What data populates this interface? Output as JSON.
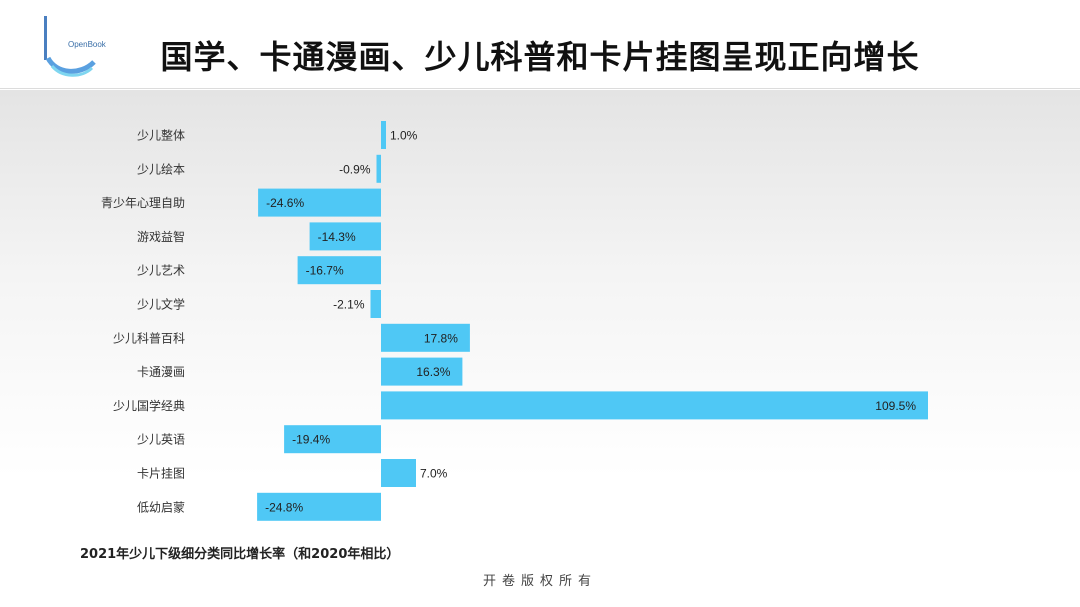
{
  "header": {
    "title": "国学、卡通漫画、少儿科普和卡片挂图呈现正向增长",
    "logo_text": "OpenBook"
  },
  "caption": "2021年少儿下级细分类同比增长率（和2020年相比）",
  "footer": "开卷版权所有",
  "colors": {
    "bar": "#4fc8f5",
    "bar_edge": "#3aaee0"
  },
  "chart_data": {
    "type": "bar",
    "orientation": "horizontal",
    "categories": [
      "少儿整体",
      "少儿绘本",
      "青少年心理自助",
      "游戏益智",
      "少儿艺术",
      "少儿文学",
      "少儿科普百科",
      "卡通漫画",
      "少儿国学经典",
      "少儿英语",
      "卡片挂图",
      "低幼启蒙"
    ],
    "values": [
      1.0,
      -0.9,
      -24.6,
      -14.3,
      -16.7,
      -2.1,
      17.8,
      16.3,
      109.5,
      -19.4,
      7.0,
      -24.8
    ],
    "labels": [
      "1.0%",
      "-0.9%",
      "-24.6%",
      "-14.3%",
      "-16.7%",
      "-2.1%",
      "17.8%",
      "16.3%",
      "109.5%",
      "-19.4%",
      "7.0%",
      "-24.8%"
    ],
    "unit": "%",
    "grid": false,
    "legend": "none"
  }
}
